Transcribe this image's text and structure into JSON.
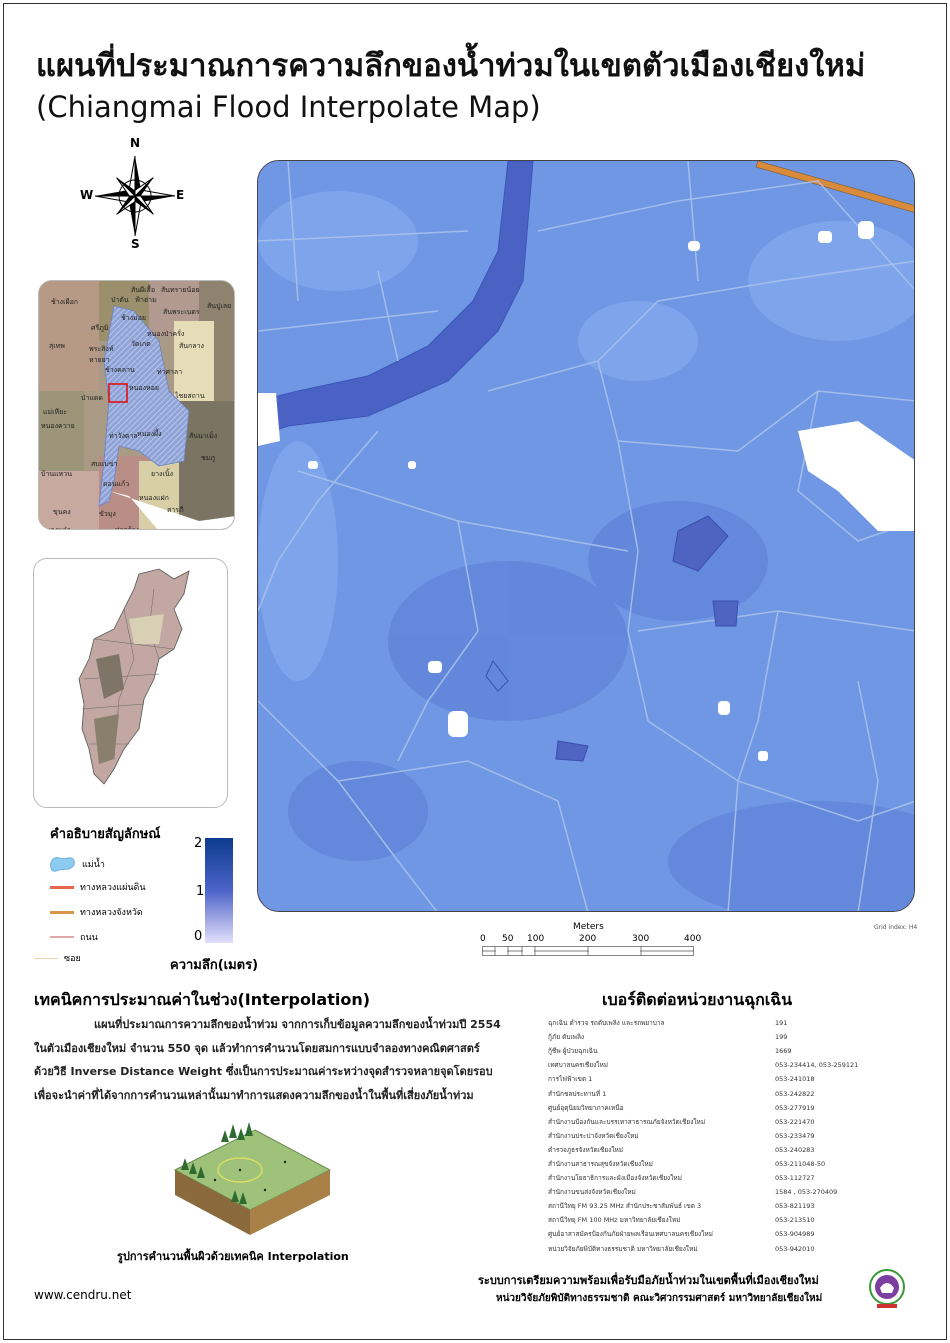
{
  "title": "แผนที่ประมาณการความลึกของน้ำท่วมในเขตตัวเมืองเชียงใหม่",
  "subtitle": "(Chiangmai Flood Interpolate Map)",
  "compass": {
    "n": "N",
    "s": "S",
    "e": "E",
    "w": "W"
  },
  "inset_labels": [
    "ช้างเผือก",
    "ป่าตัน",
    "สันผีเสื้อ",
    "ฟ้าฮ่าม",
    "สันทรายน้อย",
    "ช้างม่อย",
    "ศรีภูมิ",
    "สันพระเนตร",
    "สันปูเลย",
    "หนองป่าครั่ง",
    "วัดเกต",
    "พระสิงห์",
    "สุเทพ",
    "หายยา",
    "สันกลาง",
    "ช้างคลาน",
    "ท่าศาลา",
    "หนองหอย",
    "ป่าแดด",
    "ไชยสถาน",
    "แม่เหียะ",
    "หนองควาย",
    "ท่าวังตาล",
    "หนองผึ้ง",
    "บ้านแหวน",
    "สันนาเม็ง",
    "ยางเนิ้ง",
    "ดอนแก้ว",
    "สบแม่ข่า",
    "หนองแฝก",
    "สารภี",
    "ชมภู",
    "ขัวมุง",
    "ท่ากว้าง",
    "หนองแก๋ว",
    "ขุนคง"
  ],
  "legend": {
    "title": "คำอธิบายสัญลักษณ์",
    "items": [
      {
        "label": "แม่น้ำ",
        "color": "#8ecbf0"
      },
      {
        "label": "ทางหลวงแผ่นดิน",
        "color": "#e8644c"
      },
      {
        "label": "ทางหลวงจังหวัด",
        "color": "#d9954a"
      },
      {
        "label": "ถนน",
        "color": "#e0a8a8"
      },
      {
        "label": "ซอย",
        "color": "#efcfb0"
      }
    ],
    "ramp": {
      "max": "2",
      "mid": "1",
      "min": "0",
      "label": "ความลึก(เมตร)",
      "colors": [
        "#0c3b8f",
        "#4d63c8",
        "#e3e0fb"
      ]
    }
  },
  "scale": {
    "unit": "Meters",
    "ticks": [
      "0",
      "50",
      "100",
      "200",
      "300",
      "400"
    ]
  },
  "grid_index": "Grid index: H4",
  "interpolation": {
    "title": "เทคนิคการประมาณค่าในช่วง(Interpolation)",
    "lines": [
      "แผนที่ประมาณการความลึกของน้ำท่วม จากการเก็บข้อมูลความลึกของน้ำท่วมปี 2554",
      "ในตัวเมืองเชียงใหม่ จำนวน 550 จุด แล้วทำการคำนวนโดยสมการแบบจำลองทางคณิตศาสตร์",
      "ด้วยวิธี Inverse Distance Weight ซึ่งเป็นการประมาณค่าระหว่างจุดสำรวจหลายจุดโดยรอบ",
      "เพื่อจะนำค่าที่ได้จากการคำนวนเหล่านั้นมาทำการแสดงความลึกของน้ำในพื้นที่เสี่ยงภัยน้ำท่วม"
    ],
    "caption": "รูปการคำนวนพื้นผิวด้วยเทคนิค Interpolation"
  },
  "contacts": {
    "title": "เบอร์ติดต่อหน่วยงานฉุกเฉิน",
    "rows": [
      {
        "name": "ฉุกเฉิน ตำรวจ รถดับเพลิง และรถพยาบาล",
        "phone": "191"
      },
      {
        "name": "กู้ภัย ดับเพลิง",
        "phone": "199"
      },
      {
        "name": "กู้ชีพ ผู้ป่วยฉุกเฉิน",
        "phone": "1669"
      },
      {
        "name": "เทศบาลนครเชียงใหม่",
        "phone": "053-234414, 053-259121"
      },
      {
        "name": "การไฟฟ้าเขต 1",
        "phone": "053-241018"
      },
      {
        "name": "สำนักชลประทานที่ 1",
        "phone": "053-242822"
      },
      {
        "name": "ศูนย์อุตุนิยมวิทยาภาคเหนือ",
        "phone": "053-277919"
      },
      {
        "name": "สำนักงานป้องกันและบรรเทาสาธารณภัยจังหวัดเชียงใหม่",
        "phone": "053-221470"
      },
      {
        "name": "สำนักงานประปาจังหวัดเชียงใหม่",
        "phone": "053-233479"
      },
      {
        "name": "ตำรวจภูธรจังหวัดเชียงใหม่",
        "phone": "053-240283"
      },
      {
        "name": "สำนักงานสาธารณสุขจังหวัดเชียงใหม่",
        "phone": "053-211048-50"
      },
      {
        "name": "สำนักงานโยธาธิการและผังเมืองจังหวัดเชียงใหม่",
        "phone": "053-112727"
      },
      {
        "name": "สำนักงานขนส่งจังหวัดเชียงใหม่",
        "phone": "1584 , 053-270409"
      },
      {
        "name": "สถานีวิทยุ FM 93.25 MHz สำนักประชาสัมพันธ์ เขต 3",
        "phone": "053-821193"
      },
      {
        "name": "สถานีวิทยุ FM 100 MHz มหาวิทยาลัยเชียงใหม่",
        "phone": "053-213510"
      },
      {
        "name": "ศูนย์อาสาสมัครป้องกันภัยฝ่ายพลเรือนเทศบาลนครเชียงใหม่",
        "phone": "053-904989"
      },
      {
        "name": "หน่วยวิจัยภัยพิบัติทางธรรมชาติ มหาวิทยาลัยเชียงใหม่",
        "phone": "053-942010"
      }
    ]
  },
  "website": "www.cendru.net",
  "footer": {
    "line1": "ระบบการเตรียมความพร้อมเพื่อรับมือภัยน้ำท่วมในเขตพื้นที่เมืองเชียงใหม่",
    "line2": "หน่วยวิจัยภัยพิบัติทางธรรมชาติ คณะวิศวกรรมศาสตร์ มหาวิทยาลัยเชียงใหม่"
  },
  "colors": {
    "map_base": "#6f97e4",
    "river": "#4a62c4",
    "road": "#a9c2ea",
    "dry_patch": "#ffffff",
    "logo": "#7b3fa0"
  }
}
